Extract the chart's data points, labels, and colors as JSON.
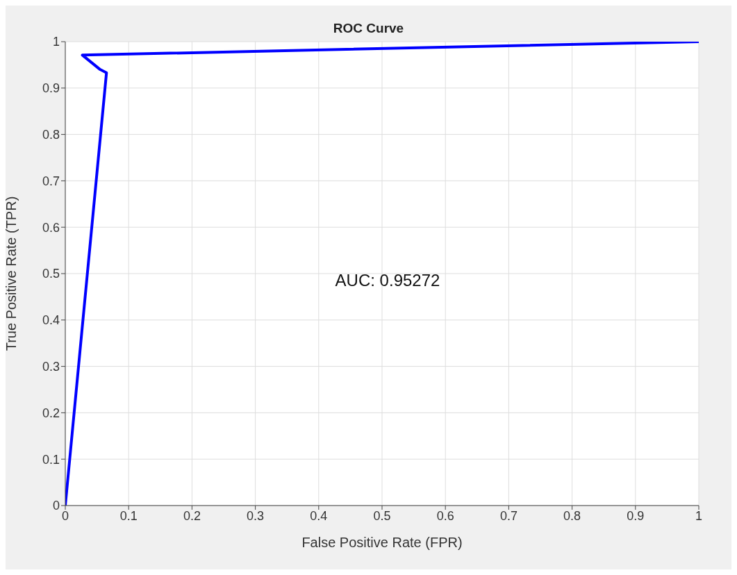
{
  "chart_data": {
    "type": "line",
    "title": "ROC Curve",
    "xlabel": "False Positive Rate (FPR)",
    "ylabel": "True Positive Rate (TPR)",
    "series": [
      {
        "color": "#0000ff",
        "x": [
          0,
          0.065,
          0.055,
          0.027,
          1
        ],
        "values": [
          0,
          0.933,
          0.94,
          0.971,
          1
        ]
      }
    ],
    "xlim": [
      0,
      1
    ],
    "ylim": [
      0,
      1
    ],
    "xticks": [
      0,
      0.1,
      0.2,
      0.3,
      0.4,
      0.5,
      0.6,
      0.7,
      0.8,
      0.9,
      1
    ],
    "yticks": [
      0,
      0.1,
      0.2,
      0.3,
      0.4,
      0.5,
      0.6,
      0.7,
      0.8,
      0.9,
      1
    ],
    "grid": true,
    "marker": "none",
    "line_style": "solid",
    "annotations": [
      "AUC: 0.95272"
    ]
  }
}
